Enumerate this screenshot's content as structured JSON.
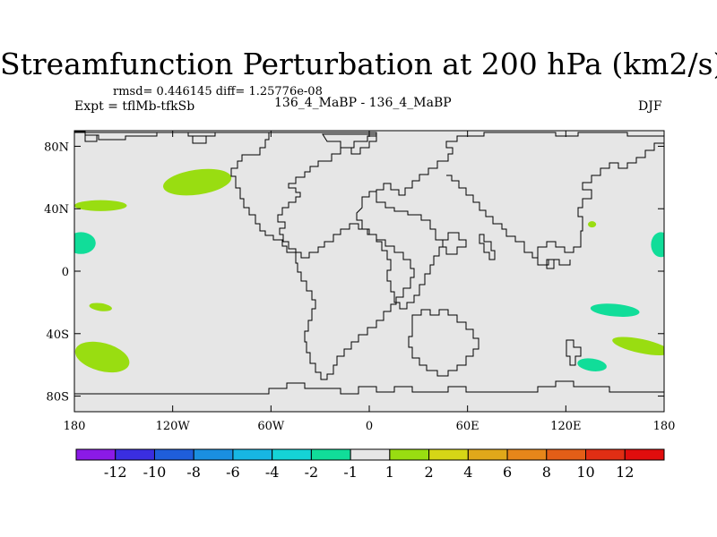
{
  "title": "Streamfunction Perturbation at 200 hPa (km2/s)",
  "stats_line": "rmsd= 0.446145 diff= 1.25776e-08",
  "expt_line": "Expt = tflMb-tfkSb",
  "subtitle": "136_4_MaBP - 136_4_MaBP",
  "season": "DJF",
  "colors": {
    "land_fill": "#e6e6e6",
    "coast": "#000000",
    "positive_anomaly": "#99dd11",
    "negative_anomaly": "#11dd99"
  },
  "map": {
    "lon_range": [
      -180,
      180
    ],
    "lat_range": [
      -90,
      90
    ],
    "x_ticks": [
      {
        "lon": -180,
        "label": "180"
      },
      {
        "lon": -120,
        "label": "120W"
      },
      {
        "lon": -60,
        "label": "60W"
      },
      {
        "lon": 0,
        "label": "0"
      },
      {
        "lon": 60,
        "label": "60E"
      },
      {
        "lon": 120,
        "label": "120E"
      },
      {
        "lon": 180,
        "label": "180"
      }
    ],
    "y_ticks": [
      {
        "lat": 80,
        "label": "80N"
      },
      {
        "lat": 40,
        "label": "40N"
      },
      {
        "lat": 0,
        "label": "0"
      },
      {
        "lat": -40,
        "label": "40S"
      },
      {
        "lat": -80,
        "label": "80S"
      }
    ]
  },
  "colorbar": {
    "colors": [
      "#8b1ae6",
      "#3a2ee0",
      "#1f5edb",
      "#1a8fe0",
      "#17b6e3",
      "#15d3d6",
      "#11dd99",
      "#e6e6e6",
      "#99dd11",
      "#d6d616",
      "#e0a81a",
      "#e6861a",
      "#e35e17",
      "#e02e14",
      "#e00d0d"
    ],
    "labels": [
      "-12",
      "-10",
      "-8",
      "-6",
      "-4",
      "-2",
      "-1",
      "1",
      "2",
      "4",
      "6",
      "8",
      "10",
      "12"
    ]
  },
  "anomalies": [
    {
      "sign": "positive",
      "name": "north-america-west-positive-anomaly",
      "lon": -105,
      "lat": 57,
      "rlon": 21,
      "rlat": 8,
      "rot": -8
    },
    {
      "sign": "positive",
      "name": "north-pacific-west-positive-anomaly",
      "lon": -164,
      "lat": 42,
      "rlon": 16,
      "rlat": 3.5,
      "rot": 0
    },
    {
      "sign": "negative",
      "name": "equatorial-pacific-west-negative-anomaly",
      "lon": -176,
      "lat": 18,
      "rlon": 9,
      "rlat": 7,
      "rot": 0
    },
    {
      "sign": "positive",
      "name": "south-pacific-subtropical-positive-anomaly",
      "lon": -164,
      "lat": -23,
      "rlon": 7,
      "rlat": 2.5,
      "rot": 8
    },
    {
      "sign": "positive",
      "name": "south-pacific-midlat-positive-anomaly",
      "lon": -163,
      "lat": -55,
      "rlon": 17,
      "rlat": 9,
      "rot": 15
    },
    {
      "sign": "positive",
      "name": "east-asia-small-positive-anomaly",
      "lon": 136,
      "lat": 30,
      "rlon": 2.5,
      "rlat": 2,
      "rot": 0
    },
    {
      "sign": "negative",
      "name": "equatorial-pacific-east-negative-anomaly",
      "lon": 178,
      "lat": 17,
      "rlon": 6,
      "rlat": 8,
      "rot": 0
    },
    {
      "sign": "negative",
      "name": "south-indian-ocean-negative-anomaly",
      "lon": 150,
      "lat": -25,
      "rlon": 15,
      "rlat": 4,
      "rot": 5
    },
    {
      "sign": "positive",
      "name": "south-pacific-east-positive-anomaly",
      "lon": 166,
      "lat": -48,
      "rlon": 18,
      "rlat": 4.5,
      "rot": 12
    },
    {
      "sign": "negative",
      "name": "southern-ocean-negative-anomaly",
      "lon": 136,
      "lat": -60,
      "rlon": 9,
      "rlat": 4,
      "rot": 8
    }
  ]
}
